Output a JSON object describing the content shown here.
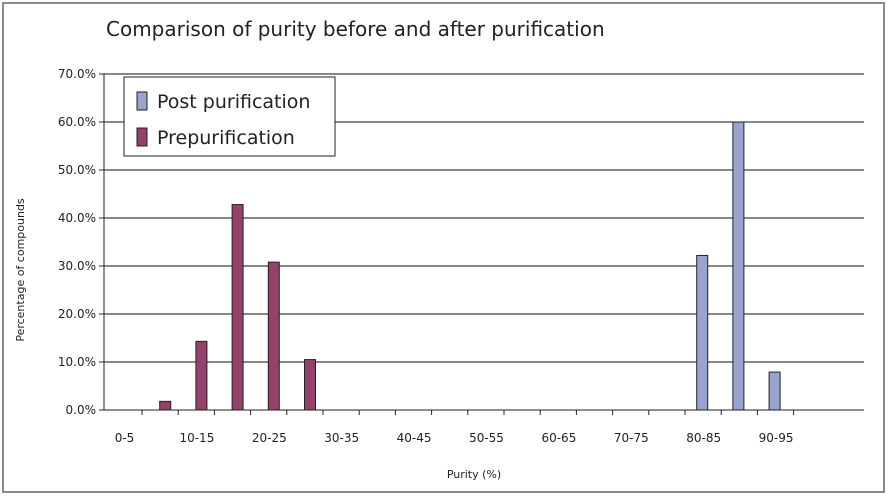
{
  "chart_data": {
    "type": "bar",
    "title": "Comparison of purity before and after purification",
    "xlabel": "Purity (%)",
    "ylabel": "Percentage of compounds",
    "categories": [
      "0-5",
      "5-10",
      "10-15",
      "15-20",
      "20-25",
      "25-30",
      "30-35",
      "35-40",
      "40-45",
      "45-50",
      "50-55",
      "55-60",
      "60-65",
      "65-70",
      "70-75",
      "75-80",
      "80-85",
      "85-90",
      "90-95"
    ],
    "tick_labels": [
      "0-5",
      "10-15",
      "20-25",
      "30-35",
      "40-45",
      "50-55",
      "60-65",
      "70-75",
      "80-85",
      "90-95"
    ],
    "y_tick_labels": [
      "0.0%",
      "10.0%",
      "20.0%",
      "30.0%",
      "40.0%",
      "50.0%",
      "60.0%",
      "70.0%"
    ],
    "ylim": [
      0,
      70
    ],
    "y_step": 10,
    "grid": true,
    "legend_position": "top-left",
    "series": [
      {
        "name": "Post purification",
        "color": "#9aa3cf",
        "values": [
          0,
          0,
          0,
          0,
          0,
          0,
          0,
          0,
          0,
          0,
          0,
          0,
          0,
          0,
          0,
          0,
          32.2,
          60.0,
          7.9
        ]
      },
      {
        "name": "Prepurification",
        "color": "#93436a",
        "values": [
          0,
          1.8,
          14.3,
          42.8,
          30.8,
          10.5,
          0,
          0,
          0,
          0,
          0,
          0,
          0,
          0,
          0,
          0,
          0,
          0,
          0
        ]
      }
    ]
  }
}
